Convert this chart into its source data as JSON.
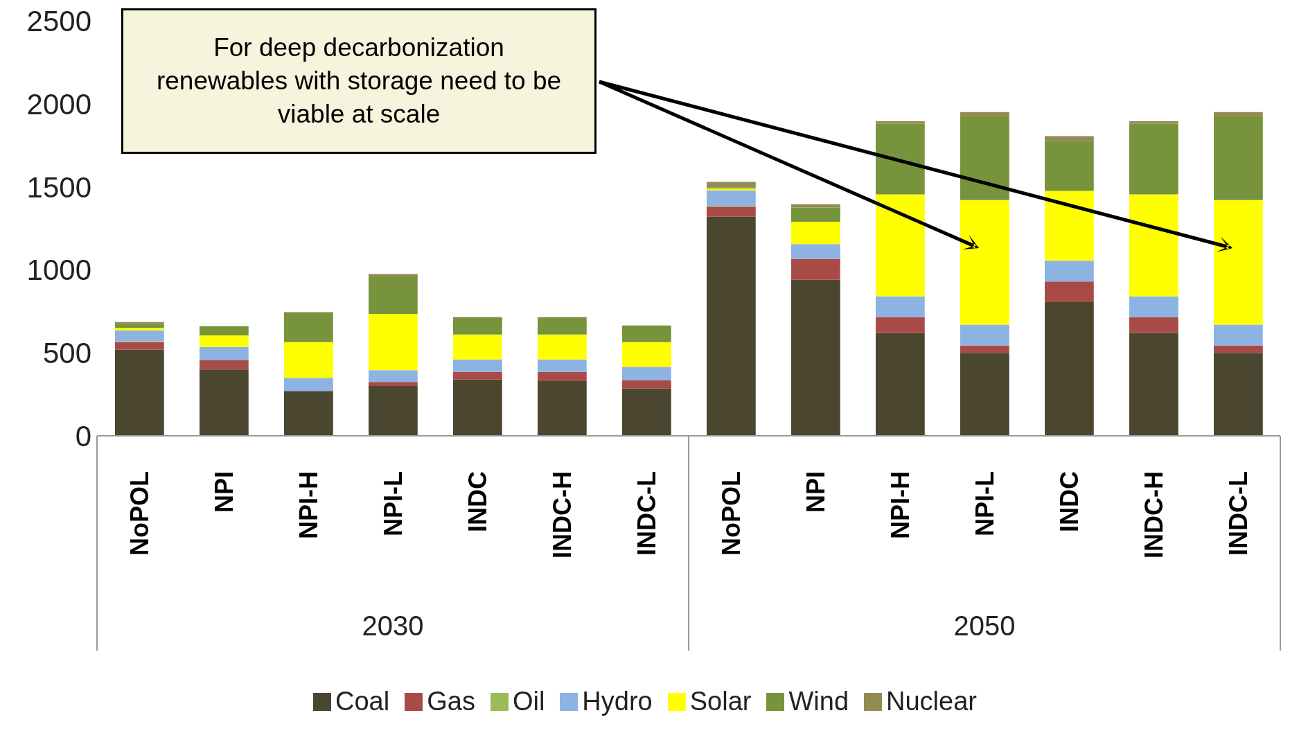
{
  "chart_data": {
    "type": "bar",
    "stacked": true,
    "categories": [
      "NoPOL",
      "NPI",
      "NPI-H",
      "NPI-L",
      "INDC",
      "INDC-H",
      "INDC-L",
      "NoPOL",
      "NPI",
      "NPI-H",
      "NPI-L",
      "INDC",
      "INDC-H",
      "INDC-L"
    ],
    "series": [
      {
        "name": "Coal",
        "color": "#4b4630",
        "values": [
          520,
          400,
          270,
          300,
          340,
          330,
          285,
          1320,
          940,
          620,
          500,
          805,
          620,
          500
        ]
      },
      {
        "name": "Gas",
        "color": "#a84a46",
        "values": [
          45,
          55,
          0,
          25,
          45,
          55,
          50,
          60,
          125,
          95,
          45,
          125,
          95,
          45
        ]
      },
      {
        "name": "Oil",
        "color": "#9bbb59",
        "values": [
          5,
          0,
          0,
          0,
          0,
          0,
          0,
          5,
          0,
          0,
          0,
          0,
          0,
          0
        ]
      },
      {
        "name": "Hydro",
        "color": "#8db3e2",
        "values": [
          65,
          80,
          80,
          70,
          75,
          75,
          80,
          95,
          90,
          125,
          125,
          125,
          125,
          125
        ]
      },
      {
        "name": "Solar",
        "color": "#ffff00",
        "values": [
          15,
          70,
          215,
          340,
          150,
          150,
          150,
          10,
          135,
          615,
          750,
          420,
          615,
          750
        ]
      },
      {
        "name": "Wind",
        "color": "#77933c",
        "values": [
          25,
          55,
          180,
          225,
          105,
          105,
          100,
          5,
          85,
          425,
          500,
          300,
          425,
          500
        ]
      },
      {
        "name": "Nuclear",
        "color": "#948a54",
        "values": [
          10,
          0,
          0,
          15,
          0,
          0,
          0,
          35,
          20,
          15,
          30,
          30,
          15,
          30
        ]
      }
    ],
    "ylim": [
      0,
      2500
    ],
    "yticks": [
      0,
      500,
      1000,
      1500,
      2000,
      2500
    ],
    "grid": false,
    "legend": "bottom",
    "annotations": [
      "For deep decarbonization renewables with storage need to be viable at scale",
      "2030",
      "2050"
    ]
  }
}
